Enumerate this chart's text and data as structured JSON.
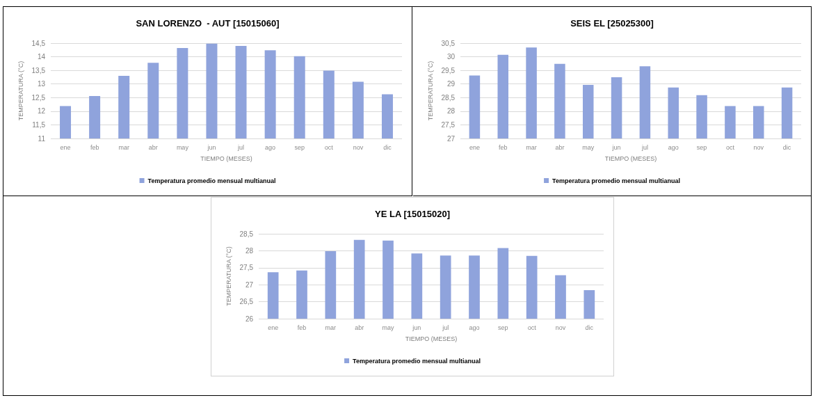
{
  "chart_data": [
    {
      "type": "bar",
      "title": "SAN LORENZO  - AUT [15015060]",
      "xlabel": "TIEMPO (MESES)",
      "ylabel": "TEMPERATURA (°C)",
      "categories": [
        "ene",
        "feb",
        "mar",
        "abr",
        "may",
        "jun",
        "jul",
        "ago",
        "sep",
        "oct",
        "nov",
        "dic"
      ],
      "series": [
        {
          "name": "Temperatura promedio mensual multianual",
          "color": "#8fa3dc",
          "values": [
            12.19,
            12.56,
            13.3,
            13.78,
            14.32,
            14.48,
            14.4,
            14.24,
            14.02,
            13.49,
            13.08,
            12.62
          ]
        }
      ],
      "ylim": [
        11,
        14.5
      ],
      "yticks": [
        11,
        {
          "value": 11.5,
          "label": "11,5"
        },
        12,
        {
          "value": 12.5,
          "label": "12,5"
        },
        13,
        {
          "value": 13.5,
          "label": "13,5"
        },
        14,
        {
          "value": 14.5,
          "label": "14,5"
        }
      ],
      "grid": "y",
      "legend": "bottom"
    },
    {
      "type": "bar",
      "title": "SEIS EL [25025300]",
      "xlabel": "TIEMPO (MESES)",
      "ylabel": "TEMPERATURA (°C)",
      "categories": [
        "ene",
        "feb",
        "mar",
        "abr",
        "may",
        "jun",
        "jul",
        "ago",
        "sep",
        "oct",
        "nov",
        "dic"
      ],
      "series": [
        {
          "name": "Temperatura promedio mensual multianual",
          "color": "#8fa3dc",
          "values": [
            29.31,
            30.07,
            30.34,
            29.74,
            28.97,
            29.25,
            29.65,
            28.87,
            28.59,
            28.19,
            28.19,
            28.87
          ]
        }
      ],
      "ylim": [
        27,
        30.5
      ],
      "yticks": [
        27,
        {
          "value": 27.5,
          "label": "27,5"
        },
        28,
        {
          "value": 28.5,
          "label": "28,5"
        },
        29,
        {
          "value": 29.5,
          "label": "29,5"
        },
        30,
        {
          "value": 30.5,
          "label": "30,5"
        }
      ],
      "grid": "y",
      "legend": "bottom"
    },
    {
      "type": "bar",
      "title": "YE LA [15015020]",
      "xlabel": "TIEMPO (MESES)",
      "ylabel": "TEMPERATURA (°C)",
      "categories": [
        "ene",
        "feb",
        "mar",
        "abr",
        "may",
        "jun",
        "jul",
        "ago",
        "sep",
        "oct",
        "nov",
        "dic"
      ],
      "series": [
        {
          "name": "Temperatura promedio mensual multianual",
          "color": "#8fa3dc",
          "values": [
            27.37,
            27.42,
            27.99,
            28.32,
            28.3,
            27.92,
            27.86,
            27.86,
            28.08,
            27.85,
            27.28,
            26.84
          ]
        }
      ],
      "ylim": [
        26,
        28.5
      ],
      "yticks": [
        26,
        {
          "value": 26.5,
          "label": "26,5"
        },
        27,
        {
          "value": 27.5,
          "label": "27,5"
        },
        28,
        {
          "value": 28.5,
          "label": "28,5"
        }
      ],
      "grid": "y",
      "legend": "bottom"
    }
  ]
}
